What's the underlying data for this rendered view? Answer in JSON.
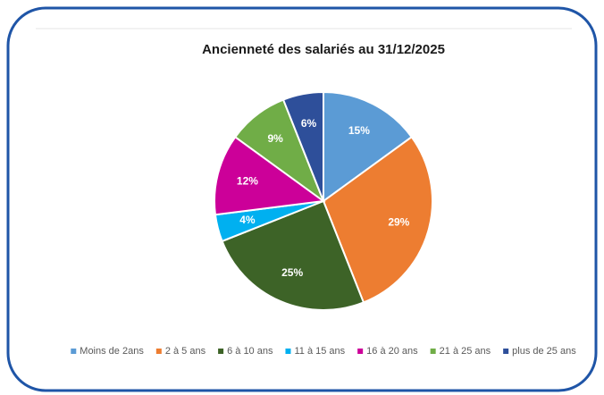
{
  "chart_data": {
    "type": "pie",
    "title": "Ancienneté des salariés au 31/12/2025",
    "categories": [
      "Moins de 2ans",
      "2 à 5 ans",
      "6 à 10 ans",
      "11 à 15 ans",
      "16 à 20 ans",
      "21 à 25 ans",
      "plus de 25 ans"
    ],
    "values": [
      15,
      29,
      25,
      4,
      12,
      9,
      6
    ],
    "value_labels": [
      "15%",
      "29%",
      "25%",
      "4%",
      "12%",
      "9%",
      "6%"
    ],
    "colors": [
      "#5b9bd5",
      "#ed7d31",
      "#3d6327",
      "#00b0f0",
      "#cc0099",
      "#70ad47",
      "#2e4f9a"
    ],
    "legend": "bottom"
  }
}
